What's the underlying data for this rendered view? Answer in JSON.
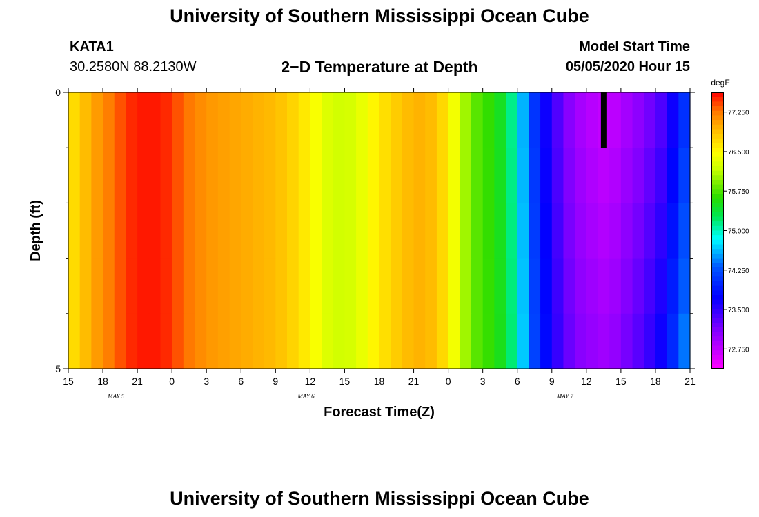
{
  "header": {
    "title": "University of Southern Mississippi Ocean Cube",
    "station_id": "KATA1",
    "coordinates": "30.2580N 88.2130W",
    "subtitle": "2−D Temperature at Depth",
    "model_start_label": "Model Start Time",
    "model_start_value": "05/05/2020 Hour 15"
  },
  "footer": {
    "title": "University of Southern Mississippi Ocean Cube"
  },
  "chart_data": {
    "type": "heatmap",
    "title": "2−D Temperature at Depth",
    "xlabel": "Forecast Time(Z)",
    "ylabel": "Depth (ft)",
    "x_tick_labels": [
      "15",
      "18",
      "21",
      "0",
      "3",
      "6",
      "9",
      "12",
      "15",
      "18",
      "21",
      "0",
      "3",
      "6",
      "9",
      "12",
      "15",
      "18",
      "21"
    ],
    "date_labels": [
      {
        "label": "MAY 5",
        "hour_index": 4.5
      },
      {
        "label": "MAY 6",
        "hour_index": 21
      },
      {
        "label": "MAY 7",
        "hour_index": 43.5
      }
    ],
    "x_range_hours": [
      0,
      54
    ],
    "x_tick_step_hours": 3,
    "y_range": [
      0,
      5
    ],
    "y_tick_labels": [
      "0",
      "5"
    ],
    "y_minor_ticks": [
      1,
      2,
      3,
      4
    ],
    "depth_levels": 5,
    "time_steps": 54,
    "colorbar": {
      "unit": "degF",
      "range": [
        72.375,
        77.625
      ],
      "tick_labels": [
        "77.250",
        "76.500",
        "75.750",
        "75.000",
        "74.250",
        "73.500",
        "72.750"
      ],
      "tick_values": [
        77.25,
        76.5,
        75.75,
        75.0,
        74.25,
        73.5,
        72.75
      ]
    },
    "temperature_profile_degF": [
      {
        "hour": 0,
        "value": 76.6
      },
      {
        "hour": 1,
        "value": 76.8
      },
      {
        "hour": 2,
        "value": 77.0
      },
      {
        "hour": 3,
        "value": 77.15
      },
      {
        "hour": 4,
        "value": 77.3
      },
      {
        "hour": 5,
        "value": 77.45
      },
      {
        "hour": 6,
        "value": 77.55
      },
      {
        "hour": 8,
        "value": 77.55
      },
      {
        "hour": 9,
        "value": 77.45
      },
      {
        "hour": 10,
        "value": 77.3
      },
      {
        "hour": 12,
        "value": 77.1
      },
      {
        "hour": 15,
        "value": 77.0
      },
      {
        "hour": 18,
        "value": 76.9
      },
      {
        "hour": 20,
        "value": 76.7
      },
      {
        "hour": 22,
        "value": 76.35
      },
      {
        "hour": 23,
        "value": 76.2
      },
      {
        "hour": 25,
        "value": 76.25
      },
      {
        "hour": 26,
        "value": 76.45
      },
      {
        "hour": 28,
        "value": 76.75
      },
      {
        "hour": 30,
        "value": 76.95
      },
      {
        "hour": 31,
        "value": 76.95
      },
      {
        "hour": 32,
        "value": 76.85
      },
      {
        "hour": 33,
        "value": 76.6
      },
      {
        "hour": 34,
        "value": 76.2
      },
      {
        "hour": 35,
        "value": 75.85
      },
      {
        "hour": 37,
        "value": 75.6
      },
      {
        "hour": 38,
        "value": 75.35
      },
      {
        "hour": 39,
        "value": 74.9
      },
      {
        "hour": 40,
        "value": 74.3
      },
      {
        "hour": 41,
        "value": 73.85
      },
      {
        "hour": 42,
        "value": 73.5
      },
      {
        "hour": 43,
        "value": 73.2
      },
      {
        "hour": 44,
        "value": 72.95
      },
      {
        "hour": 46,
        "value": 72.75
      },
      {
        "hour": 47,
        "value": 72.7
      },
      {
        "hour": 48,
        "value": 72.85
      },
      {
        "hour": 50,
        "value": 73.1
      },
      {
        "hour": 52,
        "value": 73.45
      },
      {
        "hour": 53,
        "value": 73.9
      },
      {
        "hour": 54,
        "value": 74.2
      }
    ],
    "depth_warming_degF_per_level": 0.09,
    "missing_data": {
      "hour": 46.5,
      "depth_levels": [
        0
      ]
    }
  },
  "colors": {
    "background": "#ffffff",
    "foreground": "#000000",
    "missing": "#000000"
  }
}
